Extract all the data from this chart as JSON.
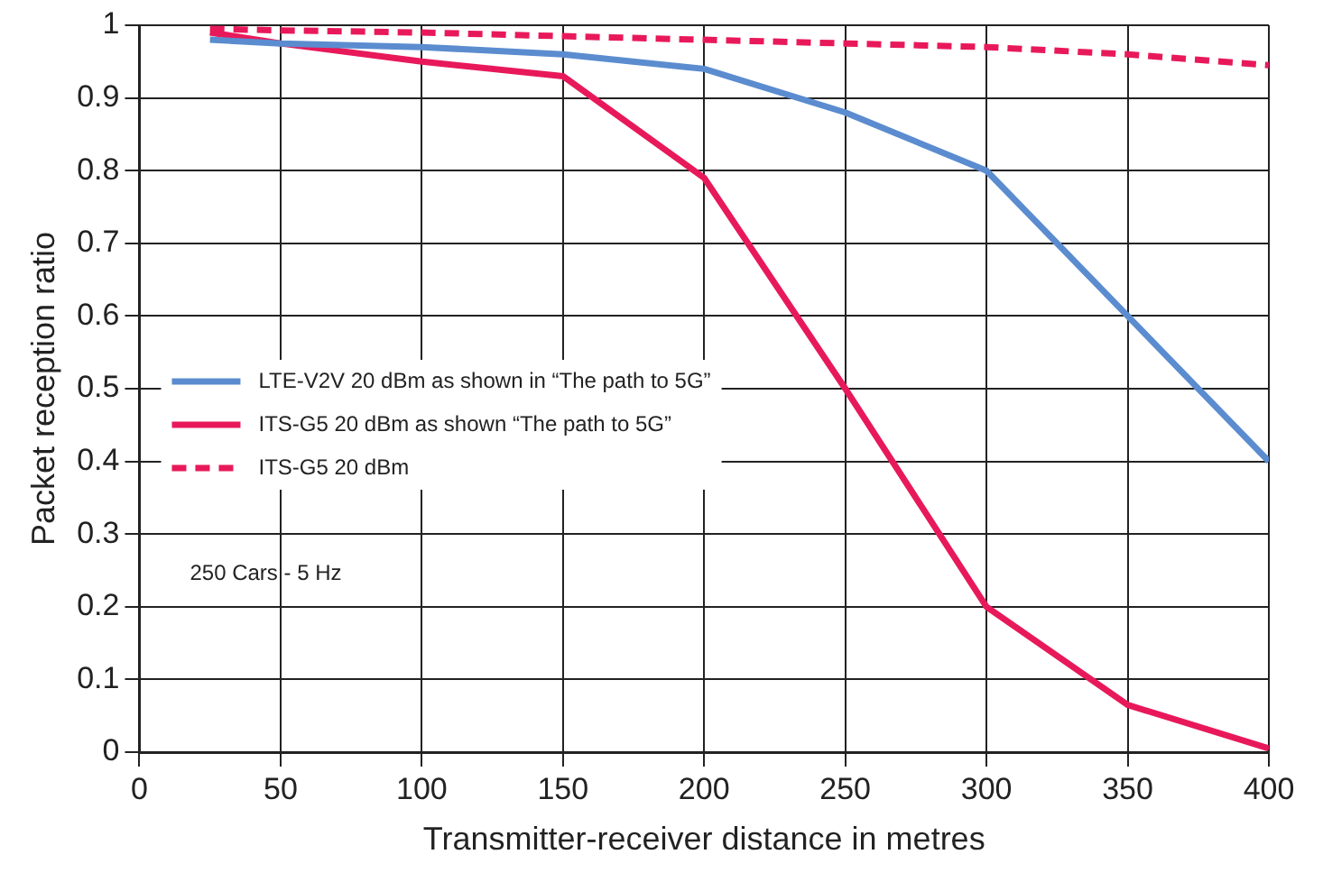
{
  "chart_data": {
    "type": "line",
    "xlabel": "Transmitter-receiver distance in metres",
    "ylabel": "Packet reception ratio",
    "x": [
      25,
      50,
      100,
      150,
      200,
      250,
      300,
      350,
      400
    ],
    "series": [
      {
        "name": "LTE-V2V 20 dBm as shown in “The path to 5G”",
        "color": "#5b8ccf",
        "line_style": "solid",
        "values": [
          0.98,
          0.975,
          0.97,
          0.96,
          0.94,
          0.88,
          0.8,
          0.6,
          0.4
        ]
      },
      {
        "name": "ITS-G5 20 dBm as shown “The path to 5G”",
        "color": "#e8195a",
        "line_style": "solid",
        "values": [
          0.99,
          0.975,
          0.95,
          0.93,
          0.79,
          0.5,
          0.2,
          0.065,
          0.005
        ]
      },
      {
        "name": "ITS-G5 20 dBm",
        "color": "#e8195a",
        "line_style": "dashed",
        "values": [
          0.995,
          0.993,
          0.99,
          0.985,
          0.98,
          0.975,
          0.97,
          0.96,
          0.945
        ]
      }
    ],
    "xlim": [
      0,
      400
    ],
    "xticks": [
      0,
      50,
      100,
      150,
      200,
      250,
      300,
      350,
      400
    ],
    "ylim": [
      0,
      1
    ],
    "yticks": [
      0,
      0.1,
      0.2,
      0.3,
      0.4,
      0.5,
      0.6,
      0.7,
      0.8,
      0.9,
      1
    ],
    "grid": true,
    "legend": "left",
    "marker": "none",
    "annotations": [
      "250 Cars - 5 Hz"
    ]
  }
}
